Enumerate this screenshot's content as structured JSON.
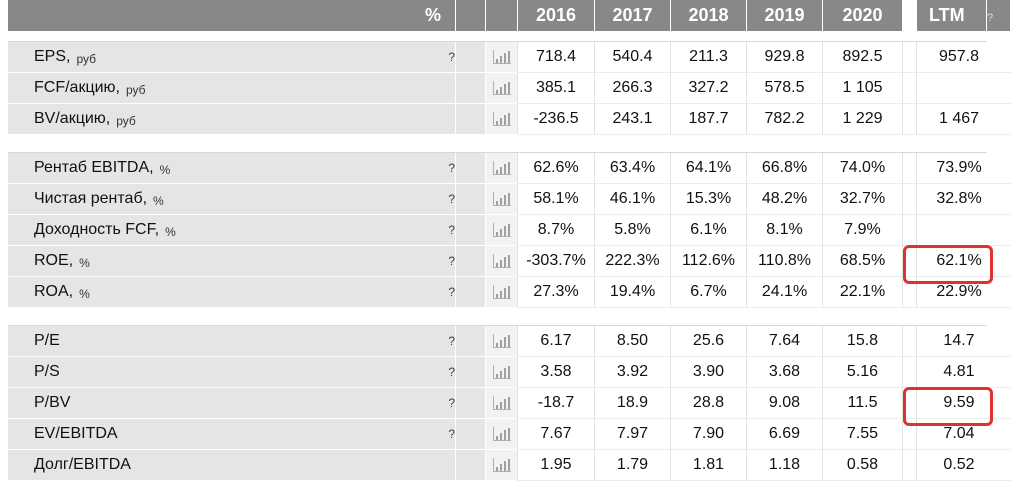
{
  "header": {
    "percent_label": "%",
    "years": [
      "2016",
      "2017",
      "2018",
      "2019",
      "2020"
    ],
    "ltm_label": "LTM",
    "ltm_help": "?"
  },
  "help_mark": "?",
  "groups": [
    {
      "rows": [
        {
          "label": "EPS,",
          "unit": "руб",
          "help": true,
          "values": [
            "718.4",
            "540.4",
            "211.3",
            "929.8",
            "892.5"
          ],
          "ltm": "957.8"
        },
        {
          "label": "FCF/акцию,",
          "unit": "руб",
          "help": false,
          "values": [
            "385.1",
            "266.3",
            "327.2",
            "578.5",
            "1 105"
          ],
          "ltm": ""
        },
        {
          "label": "BV/акцию,",
          "unit": "руб",
          "help": false,
          "values": [
            "-236.5",
            "243.1",
            "187.7",
            "782.2",
            "1 229"
          ],
          "ltm": "1 467"
        }
      ]
    },
    {
      "rows": [
        {
          "label": "Рентаб EBITDA,",
          "unit": "%",
          "help": true,
          "values": [
            "62.6%",
            "63.4%",
            "64.1%",
            "66.8%",
            "74.0%"
          ],
          "ltm": "73.9%"
        },
        {
          "label": "Чистая рентаб,",
          "unit": "%",
          "help": true,
          "values": [
            "58.1%",
            "46.1%",
            "15.3%",
            "48.2%",
            "32.7%"
          ],
          "ltm": "32.8%"
        },
        {
          "label": "Доходность FCF,",
          "unit": "%",
          "help": true,
          "values": [
            "8.7%",
            "5.8%",
            "6.1%",
            "8.1%",
            "7.9%"
          ],
          "ltm": ""
        },
        {
          "label": "ROE,",
          "unit": "%",
          "help": true,
          "values": [
            "-303.7%",
            "222.3%",
            "112.6%",
            "110.8%",
            "68.5%"
          ],
          "ltm": "62.1%",
          "highlight": true
        },
        {
          "label": "ROA,",
          "unit": "%",
          "help": true,
          "values": [
            "27.3%",
            "19.4%",
            "6.7%",
            "24.1%",
            "22.1%"
          ],
          "ltm": "22.9%"
        }
      ]
    },
    {
      "rows": [
        {
          "label": "P/E",
          "unit": "",
          "help": true,
          "values": [
            "6.17",
            "8.50",
            "25.6",
            "7.64",
            "15.8"
          ],
          "ltm": "14.7"
        },
        {
          "label": "P/S",
          "unit": "",
          "help": true,
          "values": [
            "3.58",
            "3.92",
            "3.90",
            "3.68",
            "5.16"
          ],
          "ltm": "4.81"
        },
        {
          "label": "P/BV",
          "unit": "",
          "help": true,
          "values": [
            "-18.7",
            "18.9",
            "28.8",
            "9.08",
            "11.5"
          ],
          "ltm": "9.59",
          "highlight": true
        },
        {
          "label": "EV/EBITDA",
          "unit": "",
          "help": true,
          "values": [
            "7.67",
            "7.97",
            "7.90",
            "6.69",
            "7.55"
          ],
          "ltm": "7.04"
        },
        {
          "label": "Долг/EBITDA",
          "unit": "",
          "help": false,
          "values": [
            "1.95",
            "1.79",
            "1.81",
            "1.18",
            "0.58"
          ],
          "ltm": "0.52"
        }
      ]
    }
  ],
  "colors": {
    "header_bg": "#888888",
    "label_bg": "#e5e5e5",
    "highlight_border": "#e03030"
  }
}
